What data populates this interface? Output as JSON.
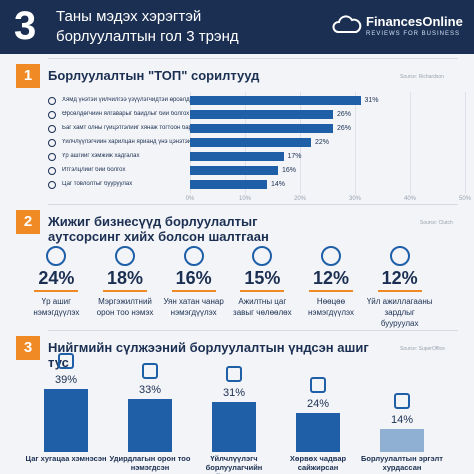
{
  "header": {
    "number": "3",
    "title_line1": "Таны мэдэх хэрэгтэй",
    "title_line2": "борлуулалтын гол 3 трэнд",
    "logo": "FinancesOnline",
    "logo_tagline": "REVIEWS FOR BUSINESS"
  },
  "chart_data": [
    {
      "type": "hbar",
      "number": "1",
      "title": "Борлуулалтын \"ТОП\" сорилтууд",
      "source": "Source: Richardson",
      "categories": [
        "Хямд үнэтэй үйлчилгээ үзүүлэгчидтэй өрсөлдөх",
        "Өрсөлдөгчийн ялгаварыг байдлыг бий болгох",
        "Баг хамт олны гүйцэтгэлийг хянаж тогтоон барих",
        "Үйлчлүүлэгчийн харилцан ярианд үнэ цэнэтэй болгох",
        "Үр ашгийг хэмжиж хадгалах",
        "Итгэлцлийг бий болгох",
        "Цаг товлолтыг бууруулах"
      ],
      "values": [
        31,
        26,
        26,
        22,
        17,
        16,
        14
      ],
      "value_labels": [
        "31%",
        "26%",
        "26%",
        "22%",
        "17%",
        "16%",
        "14%"
      ],
      "color": "#1f5fa8",
      "xlim": [
        0,
        50
      ],
      "xticks": [
        {
          "value": 0,
          "label": "0%"
        },
        {
          "value": 10,
          "label": "10%"
        },
        {
          "value": 20,
          "label": "20%"
        },
        {
          "value": 30,
          "label": "30%"
        },
        {
          "value": 40,
          "label": "40%"
        },
        {
          "value": 50,
          "label": "50%"
        }
      ],
      "grid": true
    },
    {
      "type": "stat",
      "number": "2",
      "title": "Жижиг бизнесүүд борлуулалтыг аутсорсинг хийх болсон шалтгаан",
      "source": "Source: Clutch",
      "categories": [
        "Үр ашиг нэмэгдүүлэх",
        "Мэргэжилтний орон тоо нэмэх",
        "Уян хатан чанар нэмэгдүүлэх",
        "Ажилтны цаг завыг чөлөөлөх",
        "Нөөцөө нэмэгдүүлэх",
        "Үйл ажиллагааны зардлыг бууруулах"
      ],
      "values": [
        24,
        18,
        16,
        15,
        12,
        12
      ],
      "value_labels": [
        "24%",
        "18%",
        "16%",
        "15%",
        "12%",
        "12%"
      ]
    },
    {
      "type": "vbar",
      "number": "3",
      "title": "Нийгмийн сүлжээний борлуулалтын үндсэн ашиг тус",
      "source": "Source: SuperOffice",
      "categories": [
        "Цаг хугацаа хэмнэсэн",
        "Удирдлагын орон тоо нэмэгдсэн",
        "Үйлчлүүлэгч борлуулагчийн гүнзгий нягт харилцаа",
        "Хөрвөх чадвар сайжирсан",
        "Борлуулалтын эргэлт хурдассан"
      ],
      "values": [
        39,
        33,
        31,
        24,
        14
      ],
      "value_labels": [
        "39%",
        "33%",
        "31%",
        "24%",
        "14%"
      ],
      "colors": [
        "#1f5fa8",
        "#1f5fa8",
        "#1f5fa8",
        "#1f5fa8",
        "#8fb0d3"
      ],
      "ylim": [
        0,
        60
      ]
    }
  ]
}
